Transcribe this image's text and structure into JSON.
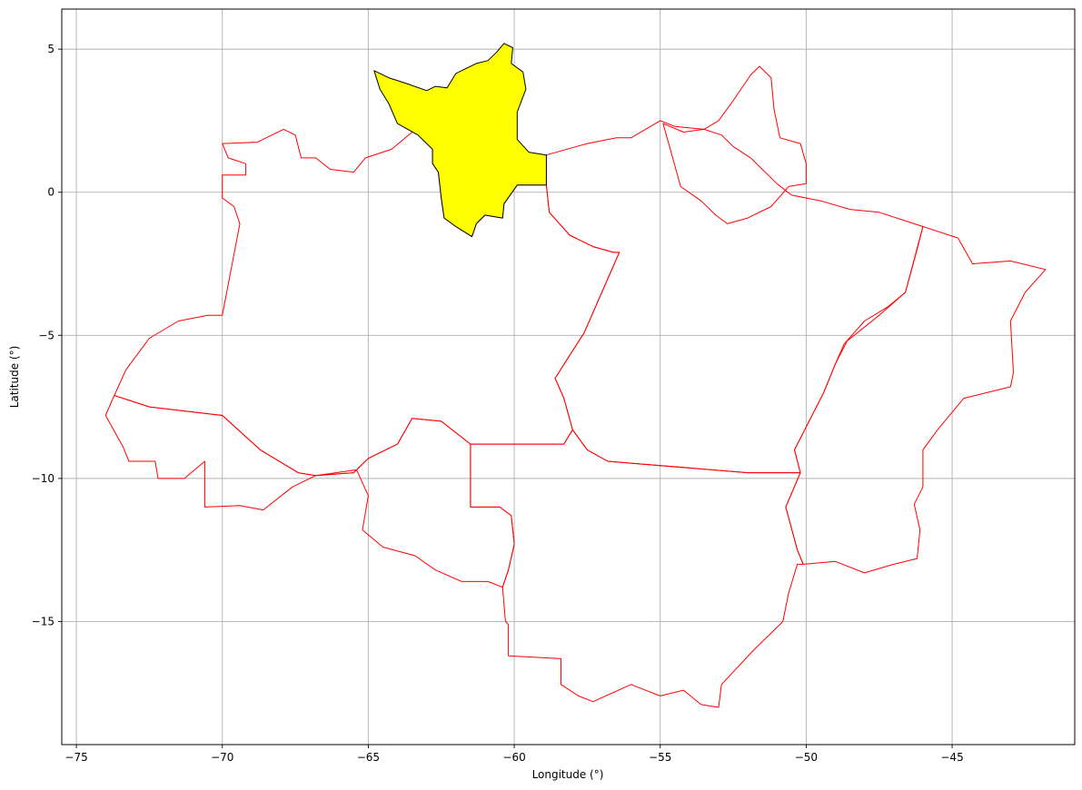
{
  "chart_data": {
    "type": "map",
    "xlabel": "Longitude (°)",
    "ylabel": "Latitude (°)",
    "xlim": [
      -75.5,
      -40.8
    ],
    "ylim": [
      -19.3,
      6.4
    ],
    "xticks": [
      -75,
      -70,
      -65,
      -60,
      -55,
      -50,
      -45
    ],
    "xtick_labels": [
      "−75",
      "−70",
      "−65",
      "−60",
      "−55",
      "−50",
      "−45"
    ],
    "yticks": [
      5,
      0,
      -5,
      -10,
      -15
    ],
    "ytick_labels": [
      "5",
      "0",
      "−5",
      "−10",
      "−15"
    ],
    "grid": true,
    "colors": {
      "region_outline": "#ff0000",
      "highlight_fill": "#ffff00",
      "highlight_outline": "#000000",
      "grid": "#b0b0b0"
    },
    "highlighted_region": {
      "outline": [
        [
          -64.8,
          4.25
        ],
        [
          -64.3,
          4.0
        ],
        [
          -63.7,
          3.8
        ],
        [
          -63.0,
          3.55
        ],
        [
          -62.7,
          3.7
        ],
        [
          -62.3,
          3.65
        ],
        [
          -62.0,
          4.15
        ],
        [
          -61.3,
          4.5
        ],
        [
          -60.9,
          4.6
        ],
        [
          -60.6,
          4.9
        ],
        [
          -60.35,
          5.2
        ],
        [
          -60.05,
          5.05
        ],
        [
          -60.1,
          4.5
        ],
        [
          -59.7,
          4.2
        ],
        [
          -59.6,
          3.6
        ],
        [
          -59.9,
          2.8
        ],
        [
          -59.9,
          1.85
        ],
        [
          -59.5,
          1.4
        ],
        [
          -58.9,
          1.3
        ],
        [
          -58.9,
          0.25
        ],
        [
          -59.9,
          0.25
        ],
        [
          -60.35,
          -0.4
        ],
        [
          -60.4,
          -0.9
        ],
        [
          -61.0,
          -0.8
        ],
        [
          -61.3,
          -1.1
        ],
        [
          -61.45,
          -1.55
        ],
        [
          -62.0,
          -1.2
        ],
        [
          -62.4,
          -0.9
        ],
        [
          -62.5,
          -0.2
        ],
        [
          -62.6,
          0.7
        ],
        [
          -62.8,
          1.0
        ],
        [
          -62.8,
          1.5
        ],
        [
          -63.3,
          2.0
        ],
        [
          -64.0,
          2.4
        ],
        [
          -64.3,
          3.1
        ],
        [
          -64.6,
          3.6
        ],
        [
          -64.8,
          4.25
        ]
      ]
    },
    "regions": [
      {
        "outline": [
          [
            -70.0,
            1.7
          ],
          [
            -68.8,
            1.75
          ],
          [
            -67.9,
            2.2
          ],
          [
            -67.5,
            2.0
          ],
          [
            -67.3,
            1.2
          ],
          [
            -66.8,
            1.2
          ],
          [
            -66.3,
            0.8
          ],
          [
            -65.5,
            0.7
          ],
          [
            -65.1,
            1.2
          ],
          [
            -64.2,
            1.5
          ],
          [
            -63.5,
            2.1
          ],
          [
            -62.9,
            2.3
          ],
          [
            -62.8,
            1.5
          ],
          [
            -62.8,
            1.0
          ],
          [
            -62.6,
            0.7
          ],
          [
            -62.5,
            -0.2
          ],
          [
            -62.4,
            -0.9
          ],
          [
            -62.0,
            -1.2
          ],
          [
            -61.45,
            -1.55
          ],
          [
            -61.3,
            -1.1
          ],
          [
            -61.0,
            -0.8
          ],
          [
            -60.4,
            -0.9
          ],
          [
            -60.35,
            -0.4
          ],
          [
            -59.9,
            0.25
          ],
          [
            -58.9,
            0.25
          ],
          [
            -58.8,
            -0.7
          ],
          [
            -58.1,
            -1.5
          ],
          [
            -57.3,
            -1.9
          ],
          [
            -56.6,
            -2.1
          ],
          [
            -56.4,
            -2.1
          ],
          [
            -57.6,
            -4.9
          ],
          [
            -58.6,
            -6.5
          ],
          [
            -58.3,
            -7.2
          ],
          [
            -58.0,
            -8.3
          ],
          [
            -58.3,
            -8.8
          ],
          [
            -61.5,
            -8.8
          ],
          [
            -62.0,
            -8.4
          ],
          [
            -62.5,
            -8.0
          ],
          [
            -63.5,
            -7.9
          ],
          [
            -64.0,
            -8.8
          ],
          [
            -65.0,
            -9.3
          ],
          [
            -65.5,
            -9.8
          ],
          [
            -66.8,
            -9.9
          ],
          [
            -67.4,
            -9.8
          ],
          [
            -68.7,
            -9.0
          ],
          [
            -70.0,
            -7.8
          ],
          [
            -72.5,
            -7.5
          ],
          [
            -73.7,
            -7.1
          ],
          [
            -73.3,
            -6.2
          ],
          [
            -72.5,
            -5.1
          ],
          [
            -71.5,
            -4.5
          ],
          [
            -70.5,
            -4.3
          ],
          [
            -70.0,
            -4.3
          ],
          [
            -69.4,
            -1.1
          ],
          [
            -69.6,
            -0.5
          ],
          [
            -70.0,
            -0.2
          ],
          [
            -70.0,
            0.6
          ],
          [
            -69.2,
            0.6
          ],
          [
            -69.2,
            1.0
          ],
          [
            -69.8,
            1.2
          ],
          [
            -70.0,
            1.7
          ]
        ]
      },
      {
        "outline": [
          [
            -73.7,
            -7.1
          ],
          [
            -72.5,
            -7.5
          ],
          [
            -70.0,
            -7.8
          ],
          [
            -68.7,
            -9.0
          ],
          [
            -67.4,
            -9.8
          ],
          [
            -66.8,
            -9.9
          ],
          [
            -67.6,
            -10.3
          ],
          [
            -68.6,
            -11.1
          ],
          [
            -69.4,
            -10.95
          ],
          [
            -70.6,
            -11.0
          ],
          [
            -70.6,
            -9.4
          ],
          [
            -71.3,
            -10.0
          ],
          [
            -72.2,
            -10.0
          ],
          [
            -72.3,
            -9.4
          ],
          [
            -73.2,
            -9.4
          ],
          [
            -73.4,
            -8.9
          ],
          [
            -74.0,
            -7.8
          ],
          [
            -73.7,
            -7.1
          ]
        ]
      },
      {
        "outline": [
          [
            -66.8,
            -9.9
          ],
          [
            -65.4,
            -9.7
          ],
          [
            -65.0,
            -10.6
          ],
          [
            -65.2,
            -11.8
          ],
          [
            -64.5,
            -12.4
          ],
          [
            -63.4,
            -12.7
          ],
          [
            -62.7,
            -13.2
          ],
          [
            -61.8,
            -13.6
          ],
          [
            -60.9,
            -13.6
          ],
          [
            -60.4,
            -13.8
          ],
          [
            -60.2,
            -13.2
          ],
          [
            -60.0,
            -12.3
          ],
          [
            -60.1,
            -11.3
          ],
          [
            -60.5,
            -11.0
          ],
          [
            -61.5,
            -11.0
          ],
          [
            -61.5,
            -8.8
          ],
          [
            -62.0,
            -8.4
          ],
          [
            -62.5,
            -8.0
          ],
          [
            -63.5,
            -7.9
          ],
          [
            -64.0,
            -8.8
          ],
          [
            -65.0,
            -9.3
          ],
          [
            -65.5,
            -9.8
          ],
          [
            -66.8,
            -9.9
          ]
        ]
      },
      {
        "outline": [
          [
            -58.9,
            1.3
          ],
          [
            -57.5,
            1.7
          ],
          [
            -56.5,
            1.9
          ],
          [
            -56.0,
            1.9
          ],
          [
            -55.0,
            2.5
          ],
          [
            -54.5,
            2.3
          ],
          [
            -53.5,
            2.2
          ],
          [
            -52.9,
            2.0
          ],
          [
            -52.5,
            1.6
          ],
          [
            -51.9,
            1.2
          ],
          [
            -51.0,
            0.3
          ],
          [
            -50.5,
            -0.1
          ],
          [
            -49.5,
            -0.3
          ],
          [
            -48.5,
            -0.6
          ],
          [
            -47.5,
            -0.7
          ],
          [
            -46.0,
            -1.2
          ],
          [
            -46.2,
            -2.0
          ],
          [
            -46.6,
            -3.5
          ],
          [
            -47.2,
            -4.0
          ],
          [
            -48.0,
            -4.5
          ],
          [
            -48.7,
            -5.3
          ],
          [
            -49.0,
            -6.0
          ],
          [
            -49.4,
            -7.0
          ],
          [
            -50.0,
            -8.2
          ],
          [
            -50.4,
            -9.0
          ],
          [
            -50.2,
            -9.8
          ],
          [
            -52.0,
            -9.8
          ],
          [
            -56.8,
            -9.4
          ],
          [
            -57.5,
            -9.0
          ],
          [
            -58.0,
            -8.3
          ],
          [
            -58.3,
            -7.2
          ],
          [
            -58.6,
            -6.5
          ],
          [
            -57.6,
            -4.9
          ],
          [
            -56.4,
            -2.1
          ],
          [
            -56.6,
            -2.1
          ],
          [
            -57.3,
            -1.9
          ],
          [
            -58.1,
            -1.5
          ],
          [
            -58.8,
            -0.7
          ],
          [
            -58.9,
            0.25
          ],
          [
            -58.9,
            1.3
          ]
        ]
      },
      {
        "outline": [
          [
            -54.9,
            2.4
          ],
          [
            -54.2,
            2.1
          ],
          [
            -53.5,
            2.2
          ],
          [
            -53.0,
            2.5
          ],
          [
            -52.5,
            3.2
          ],
          [
            -51.9,
            4.1
          ],
          [
            -51.6,
            4.4
          ],
          [
            -51.2,
            4.0
          ],
          [
            -51.1,
            2.9
          ],
          [
            -50.9,
            1.9
          ],
          [
            -50.2,
            1.7
          ],
          [
            -50.0,
            1.0
          ],
          [
            -50.0,
            0.3
          ],
          [
            -50.6,
            0.2
          ],
          [
            -51.2,
            -0.5
          ],
          [
            -52.0,
            -0.9
          ],
          [
            -52.7,
            -1.1
          ],
          [
            -53.1,
            -0.8
          ],
          [
            -53.6,
            -0.3
          ],
          [
            -54.3,
            0.2
          ],
          [
            -54.6,
            1.3
          ],
          [
            -54.9,
            2.4
          ]
        ]
      },
      {
        "outline": [
          [
            -48.6,
            -5.2
          ],
          [
            -47.5,
            -4.3
          ],
          [
            -46.6,
            -3.5
          ],
          [
            -46.0,
            -1.2
          ],
          [
            -44.8,
            -1.6
          ],
          [
            -44.3,
            -2.5
          ],
          [
            -43.0,
            -2.4
          ],
          [
            -41.8,
            -2.7
          ],
          [
            -42.5,
            -3.5
          ],
          [
            -43.0,
            -4.5
          ],
          [
            -42.9,
            -6.3
          ],
          [
            -43.0,
            -6.8
          ],
          [
            -44.6,
            -7.2
          ],
          [
            -45.5,
            -8.3
          ],
          [
            -46.0,
            -9.0
          ],
          [
            -46.0,
            -10.3
          ],
          [
            -46.3,
            -10.9
          ],
          [
            -46.1,
            -11.8
          ],
          [
            -46.2,
            -12.8
          ],
          [
            -47.0,
            -13.0
          ],
          [
            -48.0,
            -13.3
          ],
          [
            -49.0,
            -12.9
          ],
          [
            -50.1,
            -13.0
          ],
          [
            -50.3,
            -12.5
          ],
          [
            -50.7,
            -11.0
          ],
          [
            -50.2,
            -9.8
          ],
          [
            -50.4,
            -9.0
          ],
          [
            -50.0,
            -8.2
          ],
          [
            -49.4,
            -7.0
          ],
          [
            -49.0,
            -6.0
          ],
          [
            -48.6,
            -5.2
          ]
        ]
      },
      {
        "outline": [
          [
            -61.5,
            -11.0
          ],
          [
            -60.5,
            -11.0
          ],
          [
            -60.1,
            -11.3
          ],
          [
            -60.0,
            -12.3
          ],
          [
            -60.2,
            -13.2
          ],
          [
            -60.4,
            -13.8
          ],
          [
            -60.3,
            -15.0
          ],
          [
            -60.2,
            -15.1
          ],
          [
            -60.2,
            -16.2
          ],
          [
            -58.4,
            -16.3
          ],
          [
            -58.4,
            -17.2
          ],
          [
            -57.8,
            -17.6
          ],
          [
            -57.3,
            -17.8
          ],
          [
            -56.0,
            -17.2
          ],
          [
            -55.0,
            -17.6
          ],
          [
            -54.2,
            -17.4
          ],
          [
            -53.6,
            -17.9
          ],
          [
            -53.0,
            -18.0
          ],
          [
            -52.9,
            -17.2
          ],
          [
            -51.8,
            -16.0
          ],
          [
            -50.8,
            -15.0
          ],
          [
            -50.6,
            -14.0
          ],
          [
            -50.3,
            -13.0
          ],
          [
            -50.1,
            -13.0
          ],
          [
            -50.3,
            -12.5
          ],
          [
            -50.7,
            -11.0
          ],
          [
            -50.2,
            -9.8
          ],
          [
            -52.0,
            -9.8
          ],
          [
            -56.8,
            -9.4
          ],
          [
            -57.5,
            -9.0
          ],
          [
            -58.0,
            -8.3
          ],
          [
            -58.3,
            -8.8
          ],
          [
            -61.5,
            -8.8
          ],
          [
            -61.5,
            -11.0
          ]
        ]
      }
    ]
  }
}
